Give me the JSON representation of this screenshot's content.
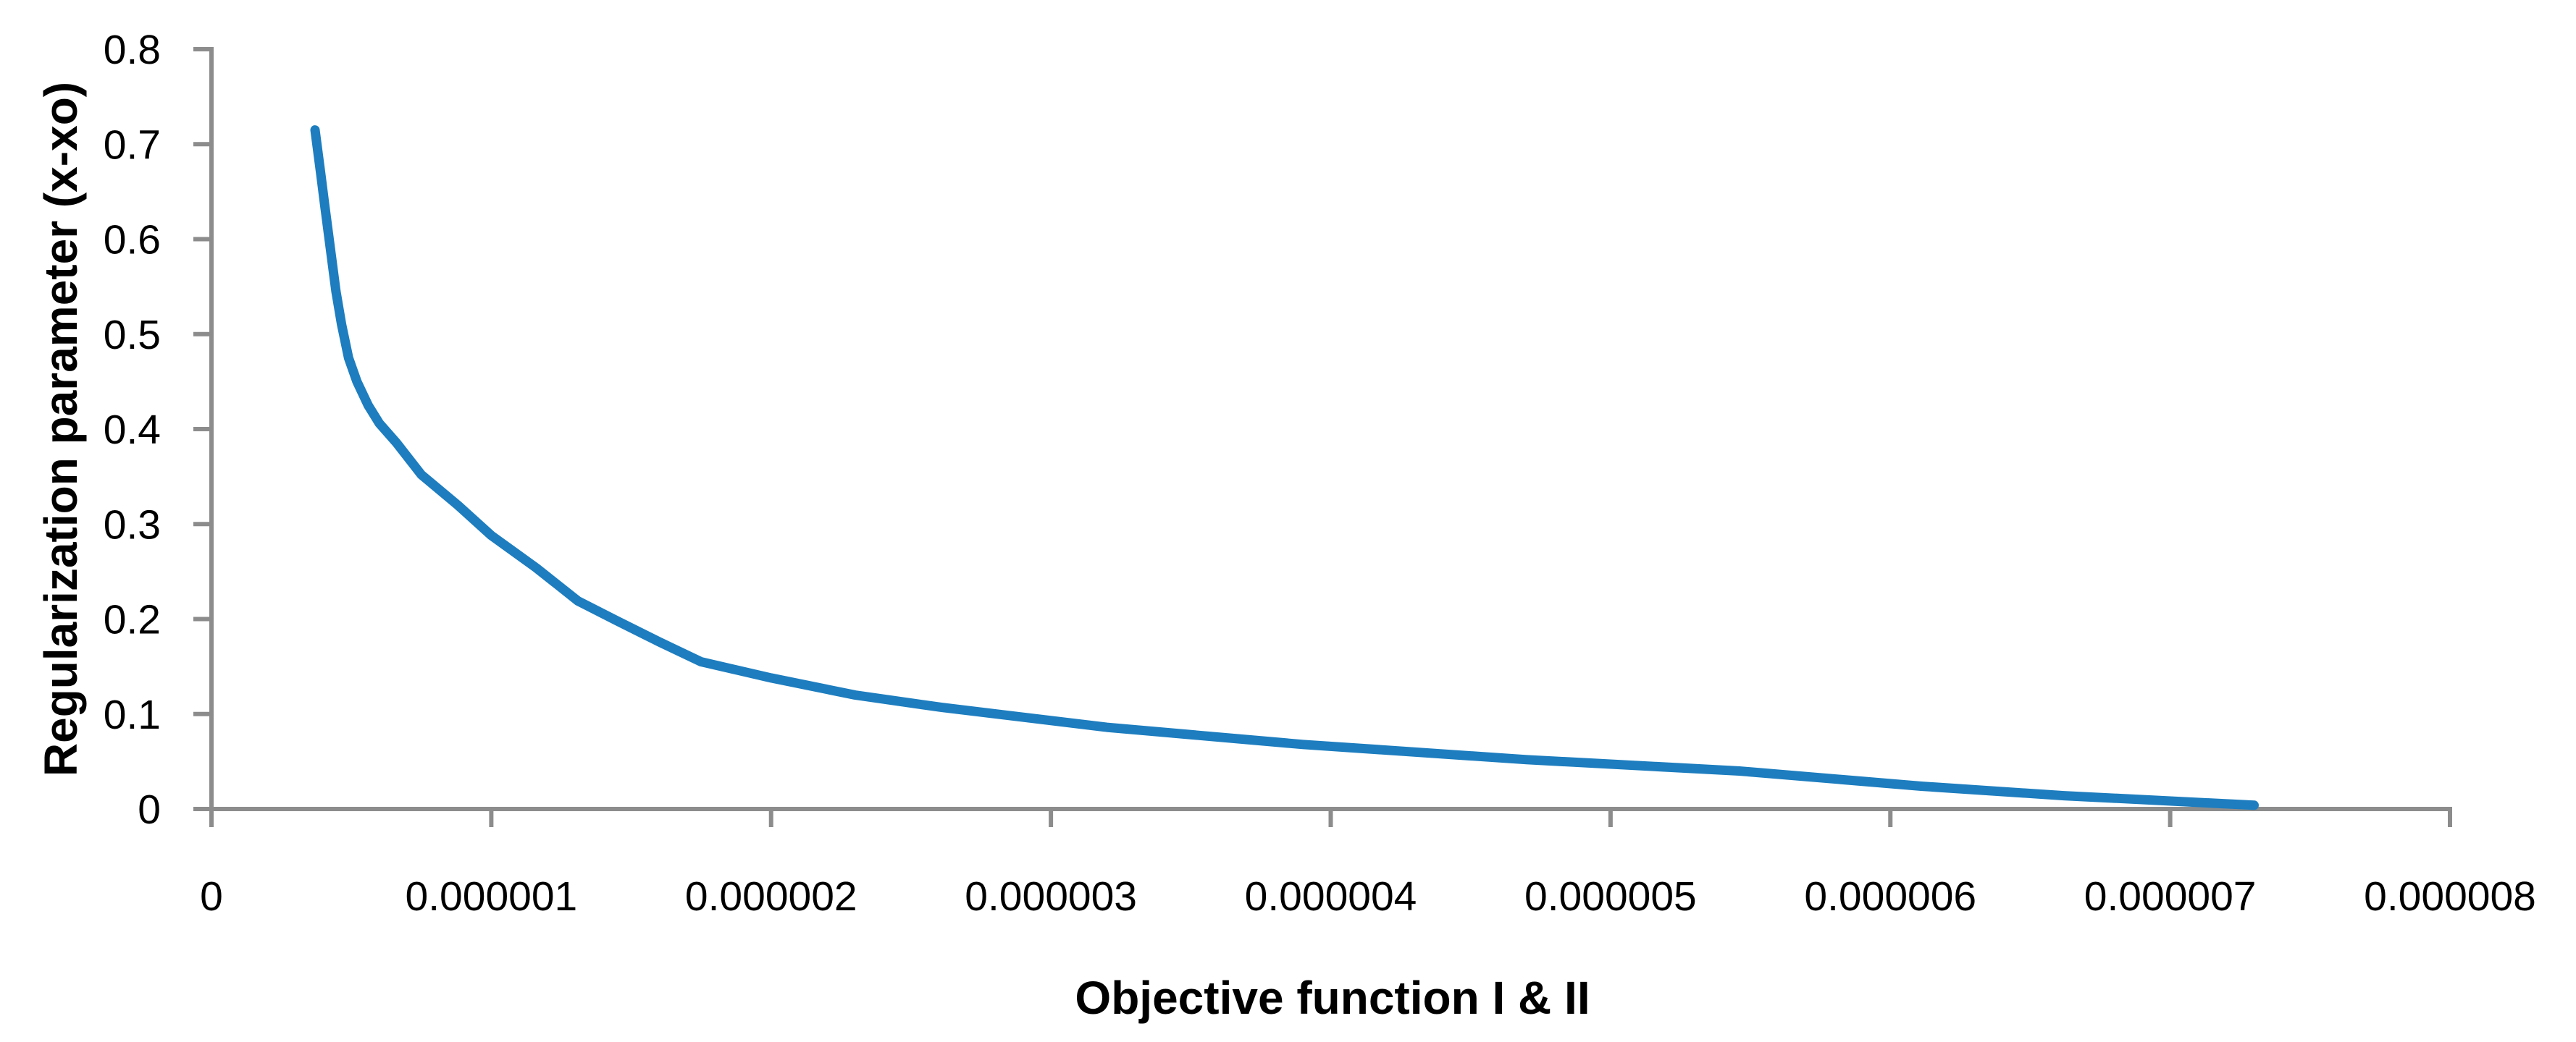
{
  "chart_data": {
    "type": "line",
    "title": "",
    "xlabel": "Objective function I & II",
    "ylabel": "Regularization parameter (x-xo)",
    "xlim": [
      0,
      8e-06
    ],
    "ylim": [
      0,
      0.8
    ],
    "grid": false,
    "legend": "none",
    "background_color": "#ffffff",
    "axis_color": "#8c8c8c",
    "text_color": "#000000",
    "x_ticks": {
      "values": [
        0,
        1e-06,
        2e-06,
        3e-06,
        4e-06,
        5e-06,
        6e-06,
        7e-06,
        8e-06
      ],
      "labels": [
        "0",
        "0.000001",
        "0.000002",
        "0.000003",
        "0.000004",
        "0.000005",
        "0.000006",
        "0.000007",
        "0.000008"
      ]
    },
    "y_ticks": {
      "values": [
        0,
        0.1,
        0.2,
        0.3,
        0.4,
        0.5,
        0.6,
        0.7,
        0.8
      ],
      "labels": [
        "0",
        "0.1",
        "0.2",
        "0.3",
        "0.4",
        "0.5",
        "0.6",
        "0.7",
        "0.8"
      ]
    },
    "series": [
      {
        "color": "#1d7dbf",
        "points": [
          [
            3.7e-07,
            0.715
          ],
          [
            3.9e-07,
            0.67
          ],
          [
            4.05e-07,
            0.635
          ],
          [
            4.25e-07,
            0.59
          ],
          [
            4.45e-07,
            0.545
          ],
          [
            4.65e-07,
            0.51
          ],
          [
            4.9e-07,
            0.475
          ],
          [
            5.2e-07,
            0.45
          ],
          [
            5.6e-07,
            0.425
          ],
          [
            6e-07,
            0.406
          ],
          [
            6.6e-07,
            0.386
          ],
          [
            7.5e-07,
            0.352
          ],
          [
            8.8e-07,
            0.32
          ],
          [
            1e-06,
            0.288
          ],
          [
            1.16e-06,
            0.254
          ],
          [
            1.31e-06,
            0.219
          ],
          [
            1.45e-06,
            0.198
          ],
          [
            1.6e-06,
            0.176
          ],
          [
            1.75e-06,
            0.155
          ],
          [
            2e-06,
            0.138
          ],
          [
            2.3e-06,
            0.12
          ],
          [
            2.61e-06,
            0.107
          ],
          [
            3.2e-06,
            0.086
          ],
          [
            3.9e-06,
            0.068
          ],
          [
            4.7e-06,
            0.052
          ],
          [
            5.46e-06,
            0.04
          ],
          [
            6.11e-06,
            0.024
          ],
          [
            6.62e-06,
            0.014
          ],
          [
            7.3e-06,
            0.004
          ]
        ]
      }
    ]
  }
}
